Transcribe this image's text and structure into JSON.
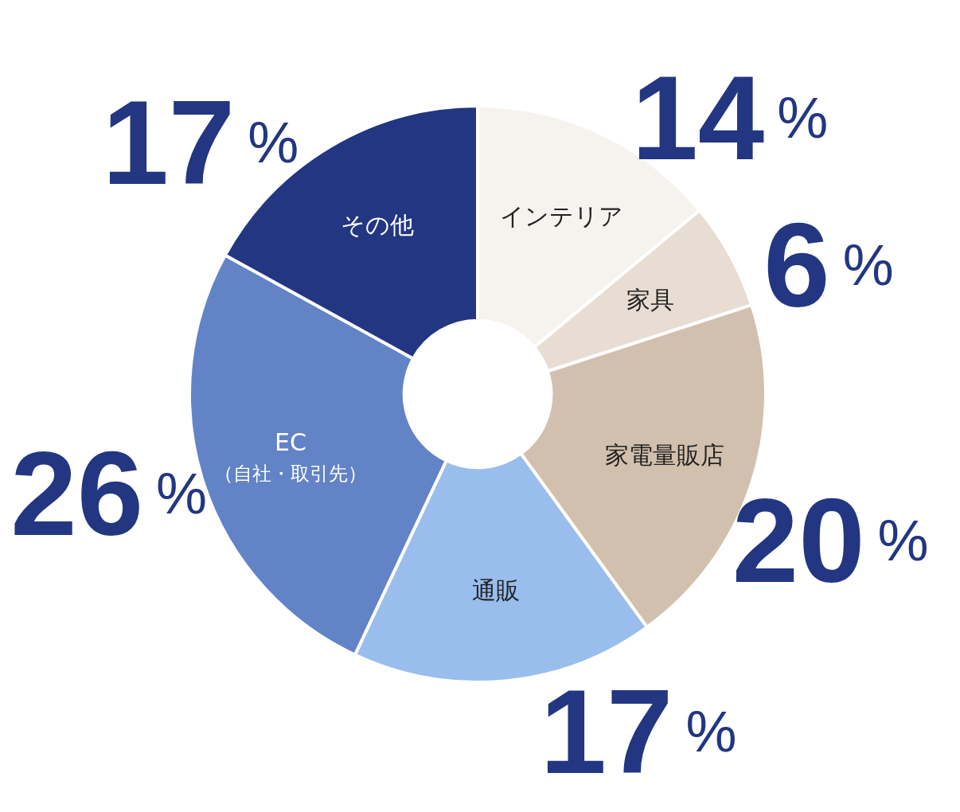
{
  "chart_data": {
    "type": "donut",
    "categories": [
      "インテリア",
      "家具",
      "家電量販店",
      "通販",
      "EC\n（自社・取引先）",
      "その他"
    ],
    "values": [
      14,
      6,
      20,
      17,
      26,
      17
    ],
    "colors": [
      "#f6f3ef",
      "#e8ddd2",
      "#d2c0ae",
      "#99bdec",
      "#6283c6",
      "#233682"
    ],
    "value_labels": [
      "14%",
      "6%",
      "20%",
      "17%",
      "26%",
      "17%"
    ]
  }
}
